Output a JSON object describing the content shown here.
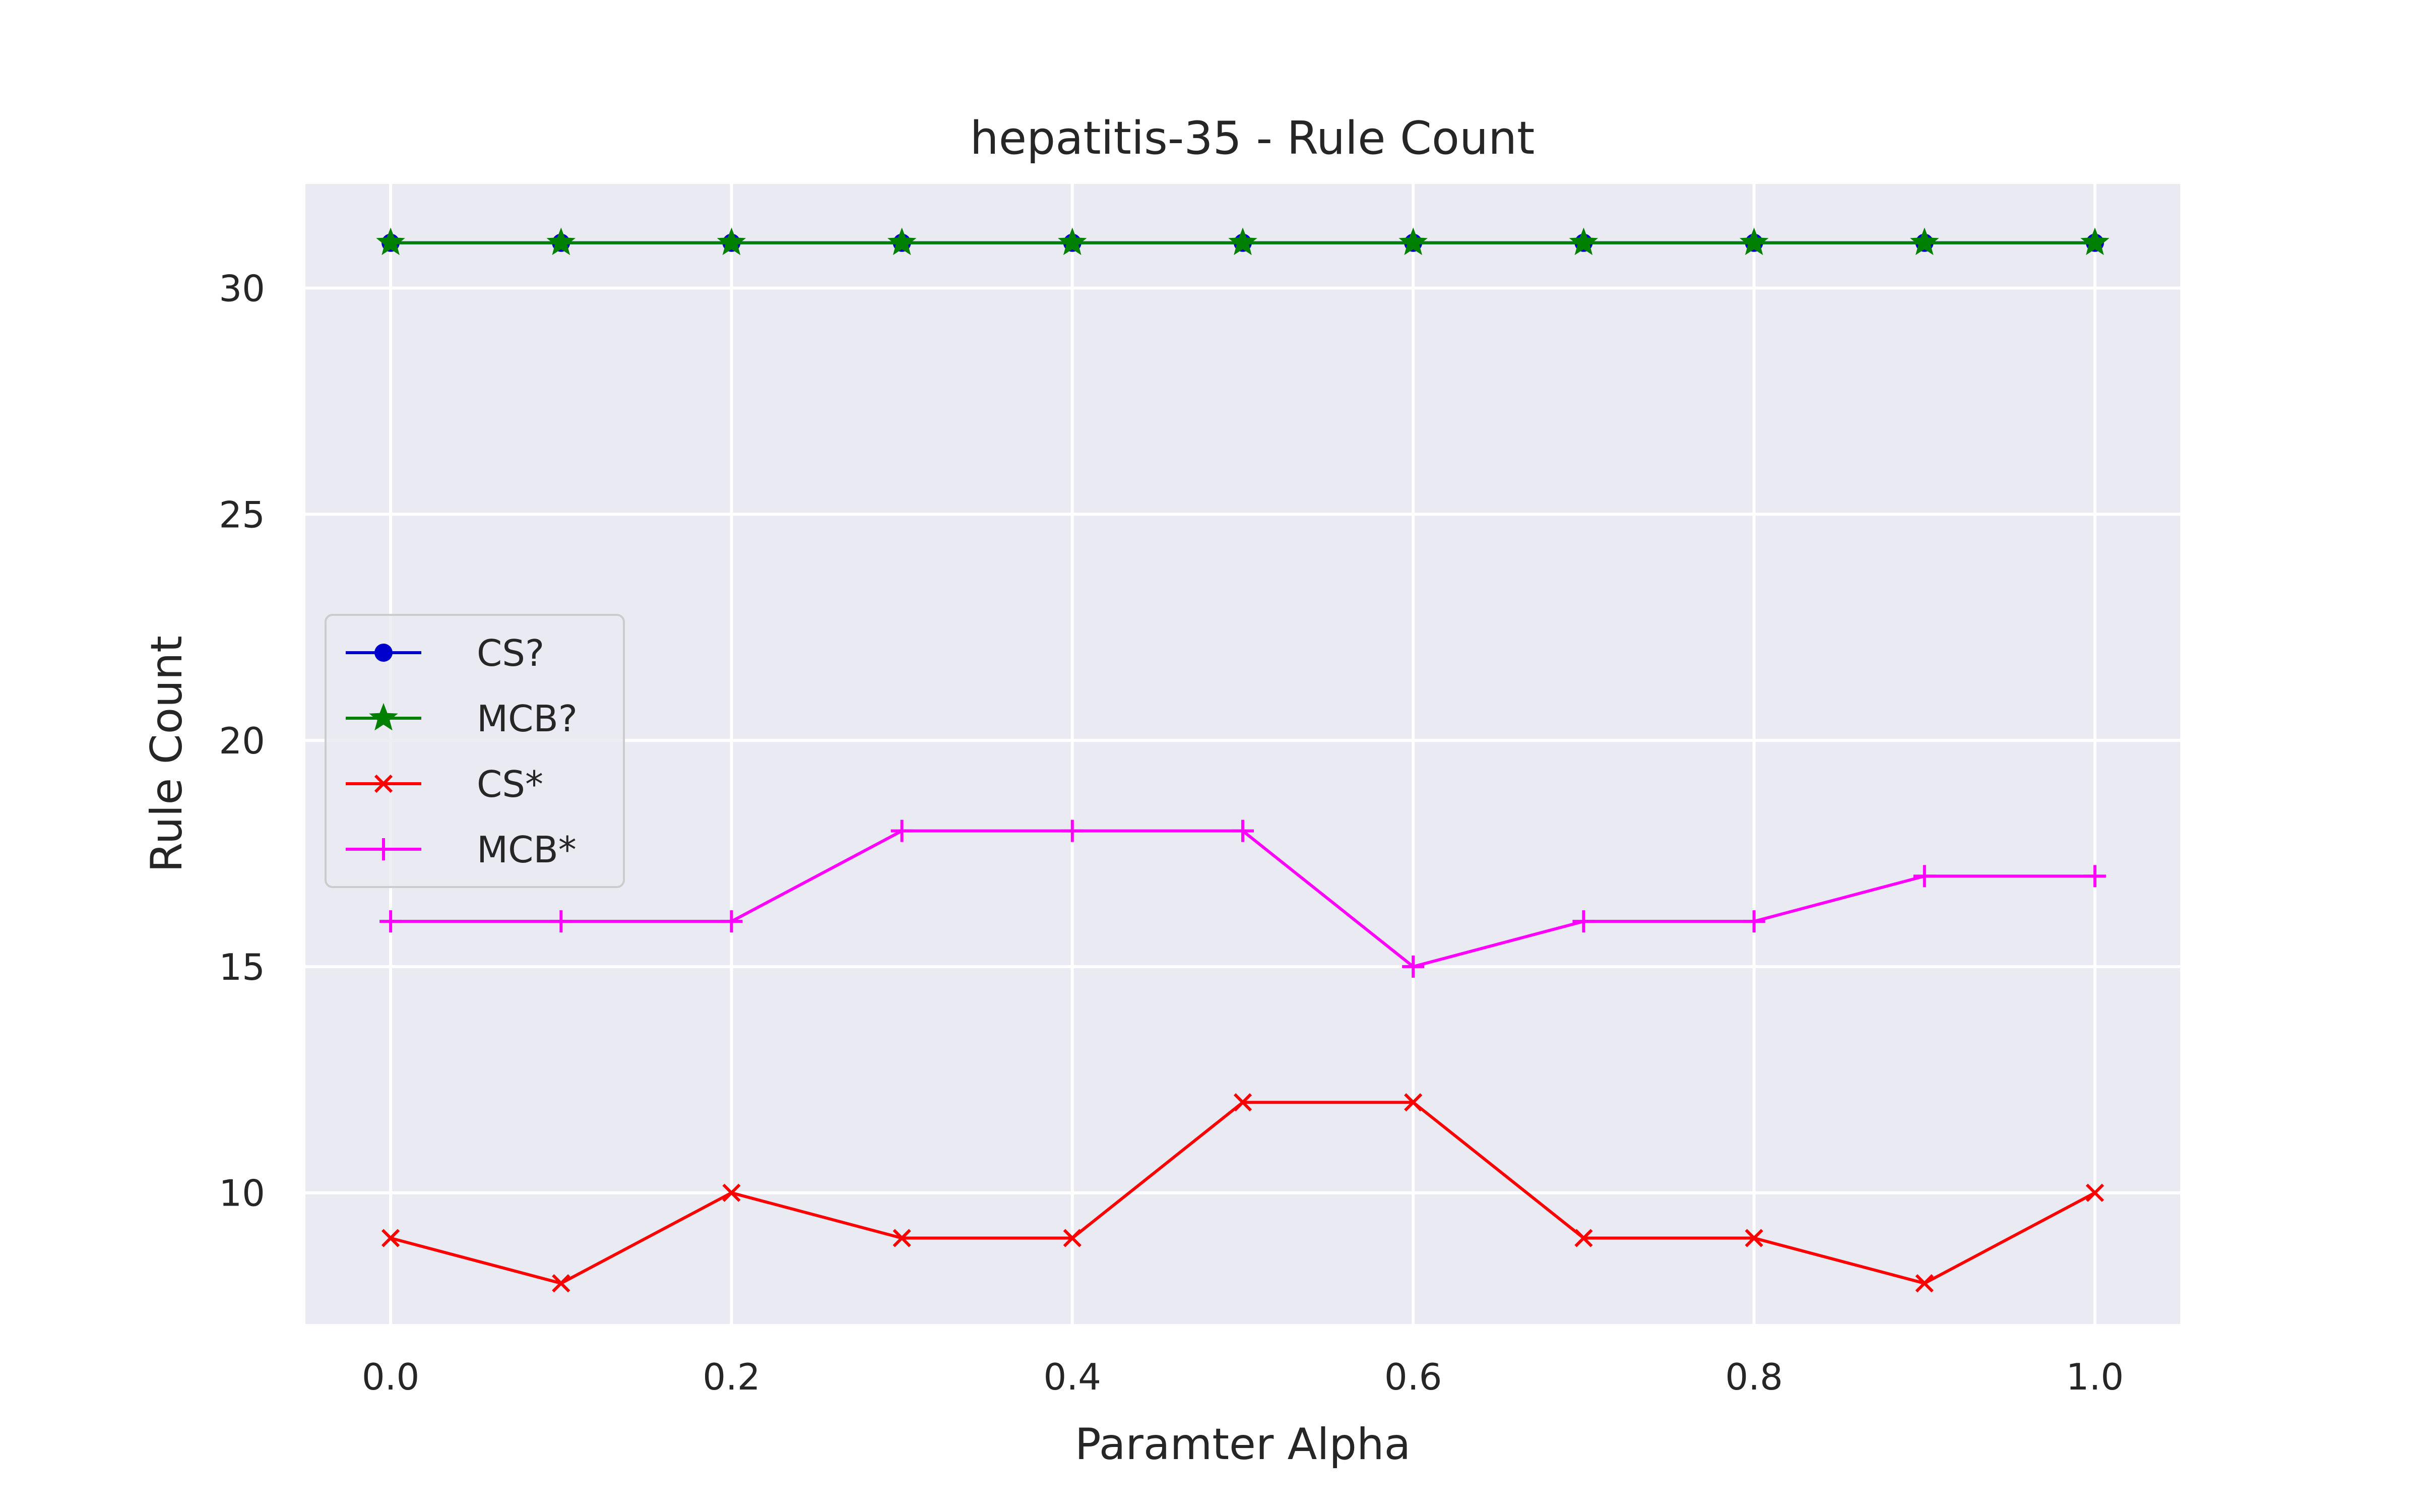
{
  "chart_data": {
    "type": "line",
    "title": "hepatitis-35 - Rule Count",
    "xlabel": "Paramter Alpha",
    "ylabel": "Rule Count",
    "x": [
      0.0,
      0.1,
      0.2,
      0.3,
      0.4,
      0.5,
      0.6,
      0.7,
      0.8,
      0.9,
      1.0
    ],
    "xlim": [
      -0.05,
      1.05
    ],
    "ylim": [
      7.1,
      32.3
    ],
    "xticks": [
      "0.0",
      "0.2",
      "0.4",
      "0.6",
      "0.8",
      "1.0"
    ],
    "yticks": [
      "10",
      "15",
      "20",
      "25",
      "30"
    ],
    "grid": true,
    "legend_position": "center-left",
    "series": [
      {
        "name": "CS?",
        "color": "#0000cc",
        "marker": "circle",
        "values": [
          31,
          31,
          31,
          31,
          31,
          31,
          31,
          31,
          31,
          31,
          31
        ]
      },
      {
        "name": "MCB?",
        "color": "#008000",
        "marker": "star",
        "values": [
          31,
          31,
          31,
          31,
          31,
          31,
          31,
          31,
          31,
          31,
          31
        ]
      },
      {
        "name": "CS*",
        "color": "#ff0000",
        "marker": "x",
        "values": [
          9,
          8,
          10,
          9,
          9,
          12,
          12,
          9,
          9,
          8,
          10
        ]
      },
      {
        "name": "MCB*",
        "color": "#ff00ff",
        "marker": "plus",
        "values": [
          16,
          16,
          16,
          18,
          18,
          18,
          15,
          16,
          16,
          17,
          17
        ]
      }
    ]
  }
}
